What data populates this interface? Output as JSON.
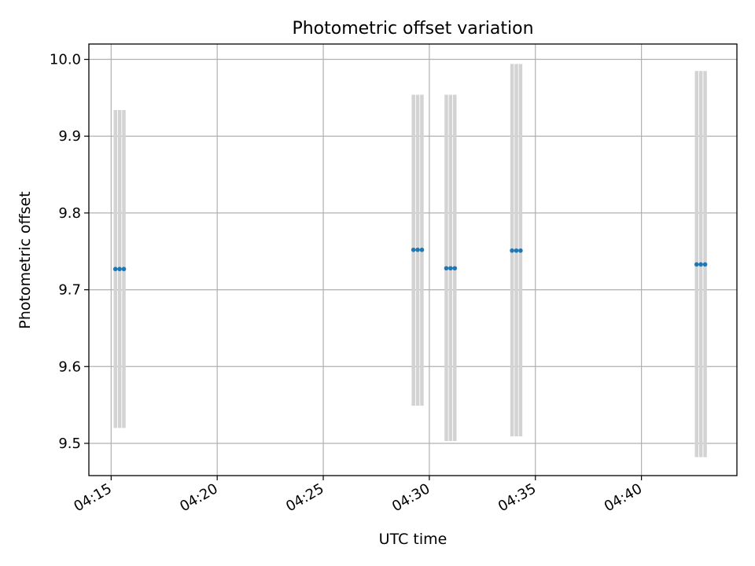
{
  "chart_data": {
    "type": "scatter",
    "title": "Photometric offset variation",
    "xlabel": "UTC time",
    "ylabel": "Photometric offset",
    "grid": true,
    "x_ticks": [
      "04:15",
      "04:20",
      "04:25",
      "04:30",
      "04:35",
      "04:40"
    ],
    "x_tick_minutes": [
      15,
      20,
      25,
      30,
      35,
      40
    ],
    "xlim_minutes": [
      13.95,
      44.5
    ],
    "y_ticks": [
      "9.5",
      "9.6",
      "9.7",
      "9.8",
      "9.9",
      "10.0"
    ],
    "ylim": [
      9.458,
      10.02
    ],
    "marker_color": "#1f77b4",
    "errorbar_color": "#d3d3d3",
    "series": [
      {
        "points": [
          {
            "minute": 15.2,
            "y": 9.727,
            "lo": 9.52,
            "hi": 9.934
          },
          {
            "minute": 15.4,
            "y": 9.727,
            "lo": 9.52,
            "hi": 9.934
          },
          {
            "minute": 15.6,
            "y": 9.727,
            "lo": 9.52,
            "hi": 9.934
          },
          {
            "minute": 29.25,
            "y": 9.752,
            "lo": 9.549,
            "hi": 9.954
          },
          {
            "minute": 29.45,
            "y": 9.752,
            "lo": 9.549,
            "hi": 9.954
          },
          {
            "minute": 29.65,
            "y": 9.752,
            "lo": 9.549,
            "hi": 9.954
          },
          {
            "minute": 30.8,
            "y": 9.728,
            "lo": 9.503,
            "hi": 9.954
          },
          {
            "minute": 31.0,
            "y": 9.728,
            "lo": 9.503,
            "hi": 9.954
          },
          {
            "minute": 31.2,
            "y": 9.728,
            "lo": 9.503,
            "hi": 9.954
          },
          {
            "minute": 33.9,
            "y": 9.751,
            "lo": 9.509,
            "hi": 9.994
          },
          {
            "minute": 34.1,
            "y": 9.751,
            "lo": 9.509,
            "hi": 9.994
          },
          {
            "minute": 34.3,
            "y": 9.751,
            "lo": 9.509,
            "hi": 9.994
          },
          {
            "minute": 42.6,
            "y": 9.733,
            "lo": 9.482,
            "hi": 9.985
          },
          {
            "minute": 42.8,
            "y": 9.733,
            "lo": 9.482,
            "hi": 9.985
          },
          {
            "minute": 43.0,
            "y": 9.733,
            "lo": 9.482,
            "hi": 9.985
          }
        ]
      }
    ]
  }
}
